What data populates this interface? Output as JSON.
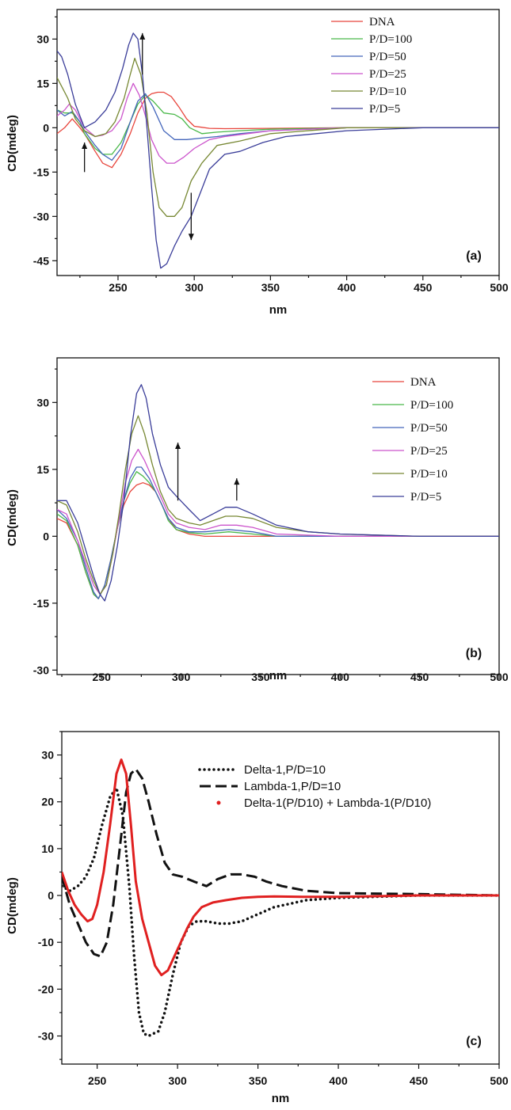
{
  "chart_data": [
    {
      "type": "line",
      "panel_label": "(a)",
      "xlabel": "nm",
      "ylabel": "CD(mdeg)",
      "xlim": [
        210,
        500
      ],
      "ylim": [
        -50,
        40
      ],
      "x_ticks": [
        250,
        300,
        350,
        400,
        450,
        500
      ],
      "y_ticks": [
        -45,
        -30,
        -15,
        0,
        15,
        30
      ],
      "legend_position": "top-right",
      "legend_font": "serif",
      "arrows": [
        {
          "x": 228,
          "y_from": -15,
          "y_to": -5,
          "direction": "up"
        },
        {
          "x": 266,
          "y_from": 18,
          "y_to": 32,
          "direction": "up"
        },
        {
          "x": 298,
          "y_from": -22,
          "y_to": -38,
          "direction": "down"
        }
      ],
      "series": [
        {
          "name": "DNA",
          "color": "#e8453c",
          "x": [
            210,
            215,
            220,
            225,
            228,
            235,
            240,
            246,
            252,
            258,
            263,
            268,
            272,
            276,
            280,
            285,
            290,
            295,
            300,
            310,
            320,
            350,
            400,
            450,
            500
          ],
          "y": [
            -2,
            0,
            3,
            0,
            -2,
            -8,
            -12,
            -13.5,
            -9,
            -2,
            5,
            10,
            11.5,
            12,
            12,
            10.5,
            7,
            3,
            0.5,
            -0.2,
            -0.3,
            -0.2,
            0,
            0,
            0
          ]
        },
        {
          "name": "P/D=100",
          "color": "#49b849",
          "x": [
            210,
            215,
            220,
            225,
            228,
            235,
            240,
            246,
            252,
            258,
            263,
            268,
            273,
            280,
            287,
            292,
            297,
            305,
            315,
            330,
            350,
            400,
            450,
            500
          ],
          "y": [
            6,
            5,
            5,
            2,
            -2,
            -7,
            -9,
            -9,
            -5,
            2,
            8,
            11,
            9,
            5,
            4.5,
            3,
            0,
            -2,
            -1.5,
            -1,
            -0.5,
            0,
            0,
            0
          ]
        },
        {
          "name": "P/D=50",
          "color": "#4466bb",
          "x": [
            210,
            215,
            220,
            225,
            228,
            235,
            240,
            246,
            252,
            258,
            263,
            268,
            273,
            280,
            287,
            295,
            305,
            315,
            330,
            350,
            400,
            450,
            500
          ],
          "y": [
            6,
            4,
            5.5,
            2,
            -1,
            -6,
            -9,
            -11,
            -7,
            2,
            9,
            11.5,
            7,
            -1,
            -4,
            -4,
            -3.5,
            -3,
            -2,
            -1,
            0,
            0,
            0
          ]
        },
        {
          "name": "P/D=25",
          "color": "#cc55cc",
          "x": [
            210,
            215,
            218,
            222,
            228,
            235,
            240,
            246,
            252,
            256,
            260,
            264,
            268,
            272,
            277,
            282,
            287,
            293,
            300,
            310,
            320,
            335,
            350,
            400,
            450,
            500
          ],
          "y": [
            4,
            6,
            8,
            6,
            0,
            -3,
            -2.5,
            -1,
            3,
            10,
            15,
            11,
            4,
            -4,
            -9.5,
            -12,
            -12,
            -10,
            -7,
            -4,
            -3,
            -2,
            -1,
            0,
            0,
            0
          ]
        },
        {
          "name": "P/D=10",
          "color": "#778833",
          "x": [
            210,
            213,
            217,
            222,
            228,
            235,
            242,
            248,
            254,
            258,
            261,
            265,
            269,
            273,
            277,
            282,
            287,
            292,
            298,
            305,
            315,
            330,
            350,
            400,
            450,
            500
          ],
          "y": [
            17,
            14,
            10,
            3,
            -1,
            -3,
            -2,
            2,
            10,
            18,
            23.5,
            18,
            5,
            -15,
            -27,
            -30,
            -30,
            -27,
            -18,
            -12,
            -6,
            -4.5,
            -2,
            0,
            0,
            0
          ]
        },
        {
          "name": "P/D=5",
          "color": "#3a3d99",
          "x": [
            210,
            213,
            217,
            222,
            228,
            235,
            242,
            248,
            253,
            257,
            260,
            263,
            266,
            269,
            272,
            275,
            278,
            282,
            287,
            292,
            298,
            304,
            310,
            320,
            330,
            345,
            360,
            400,
            450,
            500
          ],
          "y": [
            26,
            24,
            18,
            8,
            0,
            2,
            6,
            12,
            20,
            28,
            32,
            30,
            18,
            0,
            -20,
            -38,
            -47.5,
            -46,
            -40,
            -35,
            -30,
            -22,
            -14,
            -9,
            -8,
            -5,
            -3,
            -1,
            0,
            0
          ]
        }
      ]
    },
    {
      "type": "line",
      "panel_label": "(b)",
      "xlabel": "nm",
      "ylabel": "CD(mdeg)",
      "xlim": [
        222,
        500
      ],
      "ylim": [
        -31,
        40
      ],
      "x_ticks": [
        250,
        300,
        350,
        400,
        450,
        500
      ],
      "y_ticks": [
        -30,
        -15,
        0,
        15,
        30
      ],
      "legend_position": "top-right",
      "legend_font": "serif",
      "arrows": [
        {
          "x": 298,
          "y_from": 8,
          "y_to": 21,
          "direction": "up"
        },
        {
          "x": 335,
          "y_from": 8,
          "y_to": 13,
          "direction": "up"
        }
      ],
      "series": [
        {
          "name": "DNA",
          "color": "#e8453c",
          "x": [
            222,
            228,
            235,
            240,
            245,
            248,
            252,
            256,
            260,
            264,
            268,
            272,
            276,
            280,
            284,
            288,
            292,
            297,
            305,
            315,
            330,
            345,
            360,
            400,
            450,
            500
          ],
          "y": [
            4,
            3,
            -2,
            -8,
            -13,
            -14,
            -11,
            -5,
            2,
            7,
            10,
            11.5,
            12,
            11.5,
            10,
            7,
            4,
            1.5,
            0.5,
            0,
            0,
            0,
            0,
            0,
            0,
            0
          ]
        },
        {
          "name": "P/D=100",
          "color": "#49b849",
          "x": [
            222,
            228,
            235,
            240,
            245,
            248,
            252,
            256,
            260,
            264,
            268,
            272,
            276,
            280,
            284,
            288,
            292,
            297,
            305,
            315,
            330,
            345,
            360,
            400,
            450,
            500
          ],
          "y": [
            5,
            3.5,
            -2,
            -8,
            -13,
            -14,
            -11,
            -5,
            2,
            8,
            12,
            14.5,
            13.5,
            12,
            10,
            7,
            3.5,
            1.5,
            0.8,
            0.5,
            1,
            0.5,
            0,
            0,
            0,
            0
          ]
        },
        {
          "name": "P/D=50",
          "color": "#4466bb",
          "x": [
            222,
            228,
            235,
            240,
            245,
            248,
            252,
            256,
            260,
            264,
            268,
            272,
            275,
            280,
            284,
            288,
            292,
            297,
            305,
            315,
            330,
            345,
            360,
            400,
            450,
            500
          ],
          "y": [
            6,
            4,
            -1,
            -7,
            -12.5,
            -14,
            -11,
            -5,
            2,
            8,
            13,
            15.5,
            15.5,
            13,
            10,
            7,
            4,
            2,
            1,
            1,
            1.5,
            1,
            0,
            0,
            0,
            0
          ]
        },
        {
          "name": "P/D=25",
          "color": "#cc55cc",
          "x": [
            222,
            228,
            235,
            240,
            245,
            249,
            253,
            257,
            261,
            265,
            269,
            273,
            277,
            282,
            287,
            292,
            297,
            305,
            315,
            325,
            335,
            345,
            360,
            400,
            450,
            500
          ],
          "y": [
            6,
            5,
            -1,
            -6,
            -11,
            -13,
            -11,
            -4,
            4,
            12,
            17,
            19.5,
            17,
            13,
            9,
            5,
            3,
            2,
            1.5,
            2.5,
            2.5,
            2,
            0.5,
            0,
            0,
            0
          ]
        },
        {
          "name": "P/D=10",
          "color": "#778833",
          "x": [
            222,
            228,
            235,
            240,
            245,
            249,
            253,
            257,
            261,
            265,
            269,
            273,
            277,
            282,
            287,
            292,
            297,
            305,
            312,
            320,
            328,
            335,
            345,
            360,
            380,
            400,
            450,
            500
          ],
          "y": [
            8,
            7,
            1,
            -5,
            -10,
            -13,
            -11,
            -4,
            5,
            15,
            23,
            27,
            23,
            16,
            10,
            6,
            4,
            3,
            2.5,
            3.5,
            4.5,
            4.5,
            4,
            2,
            1,
            0.5,
            0,
            0
          ]
        },
        {
          "name": "P/D=5",
          "color": "#3a3d99",
          "x": [
            222,
            228,
            235,
            240,
            245,
            249,
            252,
            256,
            260,
            264,
            268,
            272,
            275,
            278,
            282,
            287,
            292,
            297,
            305,
            312,
            320,
            328,
            335,
            345,
            360,
            380,
            400,
            450,
            500
          ],
          "y": [
            8,
            8,
            3,
            -3,
            -9,
            -13,
            -14.5,
            -10,
            -2,
            8,
            22,
            32,
            34,
            31,
            23,
            16,
            11,
            9,
            6,
            3.5,
            5,
            6.5,
            6.5,
            5,
            2.5,
            1,
            0.5,
            0,
            0
          ]
        }
      ]
    },
    {
      "type": "line",
      "panel_label": "(c)",
      "xlabel": "nm",
      "ylabel": "CD(mdeg)",
      "xlim": [
        228,
        500
      ],
      "ylim": [
        -36,
        35
      ],
      "x_ticks": [
        250,
        300,
        350,
        400,
        450,
        500
      ],
      "y_ticks": [
        -30,
        -20,
        -10,
        0,
        10,
        20,
        30
      ],
      "legend_position": "top-right",
      "legend_font": "sans",
      "arrows": [],
      "series": [
        {
          "name": "Delta-1,P/D=10",
          "color": "#111111",
          "style": "dotted",
          "x": [
            228,
            233,
            238,
            243,
            248,
            253,
            258,
            262,
            266,
            270,
            273,
            276,
            279,
            282,
            285,
            288,
            292,
            297,
            302,
            307,
            312,
            318,
            325,
            332,
            340,
            350,
            360,
            380,
            400,
            450,
            500
          ],
          "y": [
            2,
            1,
            2,
            4,
            8,
            15,
            21,
            23,
            17,
            2,
            -13,
            -25,
            -29.5,
            -30,
            -29.5,
            -29,
            -25,
            -17,
            -10,
            -6.5,
            -5.5,
            -5.5,
            -6,
            -6,
            -5.5,
            -4,
            -2.5,
            -1,
            -0.5,
            0,
            0
          ]
        },
        {
          "name": "Lambda-1,P/D=10",
          "color": "#111111",
          "style": "dashed",
          "x": [
            228,
            233,
            238,
            243,
            248,
            252,
            256,
            260,
            264,
            268,
            271,
            274,
            278,
            282,
            287,
            292,
            297,
            303,
            310,
            318,
            325,
            333,
            340,
            348,
            355,
            365,
            380,
            400,
            450,
            500
          ],
          "y": [
            4,
            -2,
            -6,
            -10,
            -12.5,
            -13,
            -10,
            -2,
            10,
            22,
            26,
            27,
            25,
            20,
            13,
            7,
            4.5,
            4,
            3,
            2,
            3.5,
            4.5,
            4.5,
            4,
            3,
            2,
            1,
            0.5,
            0.3,
            0
          ]
        },
        {
          "name": "Delta-1(P/D10) + Lambda-1(P/D10)",
          "color": "#e02020",
          "style": "solid",
          "x": [
            228,
            232,
            236,
            240,
            244,
            247,
            250,
            254,
            258,
            262,
            265,
            268,
            271,
            274,
            278,
            282,
            286,
            290,
            294,
            298,
            302,
            306,
            310,
            315,
            322,
            330,
            340,
            350,
            360,
            380,
            400,
            450,
            500
          ],
          "y": [
            5,
            1,
            -2,
            -4,
            -5.5,
            -5,
            -2,
            5,
            15,
            26,
            29,
            26,
            15,
            3,
            -5,
            -10,
            -15,
            -17,
            -16,
            -13,
            -10,
            -7,
            -4.5,
            -2.5,
            -1.5,
            -1,
            -0.5,
            -0.3,
            -0.2,
            -0.3,
            -0.3,
            0,
            0
          ]
        }
      ]
    }
  ]
}
